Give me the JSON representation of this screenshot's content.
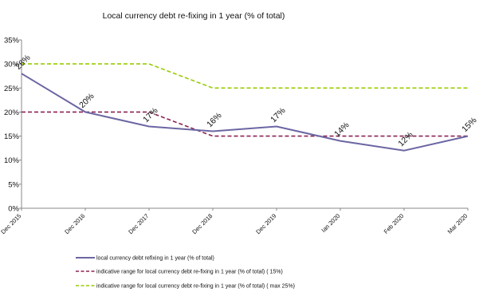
{
  "chart_data": {
    "type": "line",
    "title": "Local currency debt re-fixing in 1 year (% of total)",
    "categories": [
      "Dec 2015",
      "Dec 2016",
      "Dec 2017",
      "Dec 2018",
      "Dec 2019",
      "Ian 2020",
      "Feb 2020",
      "Mar 2020"
    ],
    "ylim": [
      0,
      35
    ],
    "yticks": [
      "0%",
      "5%",
      "10%",
      "15%",
      "20%",
      "25%",
      "30%",
      "35%"
    ],
    "grid": false,
    "legend_position": "bottom",
    "series": [
      {
        "name": "local currency debt refixing in 1 year (% of total)",
        "values": [
          28,
          20,
          17,
          16,
          17,
          14,
          12,
          15
        ],
        "data_labels": [
          "28%",
          "20%",
          "17%",
          "16%",
          "17%",
          "14%",
          "12%",
          "15%"
        ],
        "color": "#6b66a3",
        "style": "solid"
      },
      {
        "name": "indicative range for local currency debt re-fixing in 1 year (% of total) ( 15%)",
        "values": [
          20,
          20,
          20,
          15,
          15,
          15,
          15,
          15
        ],
        "color": "#8b2252",
        "style": "dashed"
      },
      {
        "name": "indicative range for local currency debt re-fixing in 1 year (% of total) ( max 25%)",
        "values": [
          30,
          30,
          30,
          25,
          25,
          25,
          25,
          25
        ],
        "color": "#99cc00",
        "style": "dashed"
      }
    ]
  }
}
